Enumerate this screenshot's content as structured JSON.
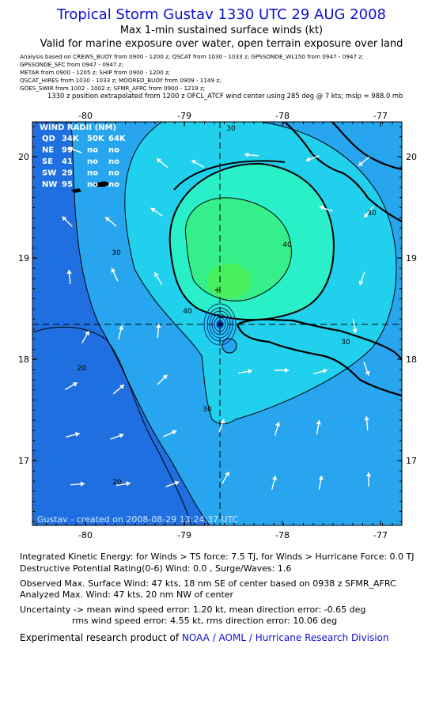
{
  "header": {
    "title": "Tropical Storm Gustav 1330 UTC 29 AUG 2008",
    "subtitle": "Max 1-min sustained surface winds (kt)",
    "validity": "Valid for marine exposure over water, open terrain exposure over land"
  },
  "sources": [
    "Analysis based on  CREWS_BUOY from 0900 - 1200 z;  QSCAT from 1030 - 1033 z;  GPSSONDE_WL150 from 0947 - 0947 z;",
    "GPSSONDE_SFC from 0947 - 0947 z;",
    "METAR from 0900 - 1205 z;  SHIP from 0900 - 1200 z;",
    "QSCAT_HIRES from 1030 - 1033 z;  MOORED_BUOY from 0909 - 1149 z;",
    "GOES_SWIR from 1002 - 1002 z;  SFMR_AFRC from 0900 - 1219 z;"
  ],
  "position_note": "1330 z position extrapolated from 1200 z OFCL_ATCF wind center using 285 deg @ 7 kts; mslp = 988.0 mb",
  "map": {
    "lon_ticks": [
      "-80",
      "-79",
      "-78",
      "-77"
    ],
    "lat_ticks": [
      "20",
      "19",
      "18",
      "17"
    ],
    "contour_labels": [
      "30",
      "30",
      "30",
      "30",
      "30",
      "40",
      "40",
      "20",
      "20"
    ],
    "credit": "Gustav - created on 2008-08-29 13:24:37 UTC",
    "wind_radii": {
      "title": "WIND RADII (NM)",
      "header": [
        "QD",
        "34K",
        "50K",
        "64K"
      ],
      "rows": [
        [
          "NE",
          "99",
          "no",
          "no"
        ],
        [
          "SE",
          "41",
          "no",
          "no"
        ],
        [
          "SW",
          "29",
          "no",
          "no"
        ],
        [
          "NW",
          "95",
          "no",
          "no"
        ]
      ]
    },
    "colors": {
      "ocean": "#1f6fe0",
      "band20": "#27a6ef",
      "band30": "#21d0ec",
      "band40": "#29f0c8",
      "core": "#35f08a",
      "land": "#000000"
    }
  },
  "stats": {
    "ike": "Integrated Kinetic Energy:  for Winds > TS force: 7.5 TJ,  for Winds > Hurricane Force: 0.0 TJ",
    "dpr": "Destructive Potential Rating(0-6)   Wind: 0.0 , Surge/Waves: 1.6",
    "observed": "Observed Max. Surface Wind: 47 kts, 18 nm SE of center based on 0938 z SFMR_AFRC",
    "analyzed": "Analyzed Max. Wind: 47 kts, 20 nm NW of center",
    "uncertainty1": "Uncertainty -> mean wind speed error: 1.20 kt,   mean direction error:  -0.65 deg",
    "uncertainty2": "rms wind speed error: 4.55 kt,   rms direction error: 10.06 deg",
    "footer_prefix": "Experimental research product of ",
    "footer_org": "NOAA / AOML / Hurricane Research Division"
  }
}
